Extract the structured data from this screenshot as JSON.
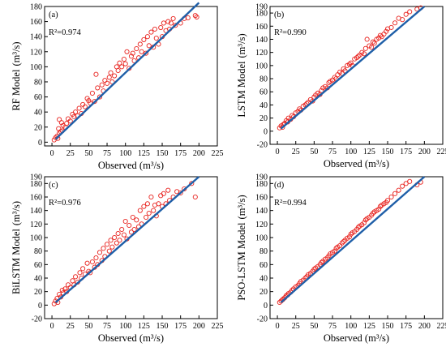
{
  "colors": {
    "points": "#e8231f",
    "fit_line": "#1f5fa8",
    "axes": "#000000",
    "background": "#ffffff"
  },
  "chart_data": [
    {
      "type": "scatter",
      "panel_label": "(a)",
      "r2_label": "R²=0.974",
      "xlabel": "Observed (m³/s)",
      "ylabel": "RF Model",
      "ylabel_unit": "(m³/s)",
      "xlim": [
        -10,
        225
      ],
      "ylim": [
        -5,
        180
      ],
      "xticks": [
        0,
        25,
        50,
        75,
        100,
        125,
        150,
        175,
        200,
        225
      ],
      "yticks": [
        0,
        20,
        40,
        60,
        80,
        100,
        120,
        140,
        160,
        180
      ],
      "fit_line": {
        "x": [
          5,
          200
        ],
        "y": [
          4,
          185
        ]
      },
      "points": [
        [
          3,
          3
        ],
        [
          5,
          6
        ],
        [
          7,
          8
        ],
        [
          8,
          5
        ],
        [
          10,
          12
        ],
        [
          9,
          18
        ],
        [
          12,
          14
        ],
        [
          14,
          15
        ],
        [
          15,
          22
        ],
        [
          10,
          30
        ],
        [
          13,
          26
        ],
        [
          18,
          20
        ],
        [
          20,
          25
        ],
        [
          22,
          31
        ],
        [
          25,
          28
        ],
        [
          28,
          37
        ],
        [
          30,
          34
        ],
        [
          32,
          40
        ],
        [
          35,
          35
        ],
        [
          37,
          45
        ],
        [
          40,
          38
        ],
        [
          42,
          50
        ],
        [
          45,
          47
        ],
        [
          48,
          58
        ],
        [
          50,
          55
        ],
        [
          52,
          52
        ],
        [
          55,
          65
        ],
        [
          58,
          54
        ],
        [
          60,
          90
        ],
        [
          62,
          72
        ],
        [
          65,
          60
        ],
        [
          68,
          76
        ],
        [
          70,
          68
        ],
        [
          72,
          82
        ],
        [
          75,
          78
        ],
        [
          78,
          86
        ],
        [
          80,
          92
        ],
        [
          82,
          80
        ],
        [
          85,
          88
        ],
        [
          88,
          100
        ],
        [
          90,
          95
        ],
        [
          92,
          105
        ],
        [
          95,
          100
        ],
        [
          98,
          110
        ],
        [
          100,
          104
        ],
        [
          102,
          120
        ],
        [
          105,
          98
        ],
        [
          108,
          114
        ],
        [
          110,
          118
        ],
        [
          112,
          108
        ],
        [
          115,
          124
        ],
        [
          118,
          112
        ],
        [
          120,
          130
        ],
        [
          122,
          120
        ],
        [
          125,
          136
        ],
        [
          128,
          118
        ],
        [
          130,
          140
        ],
        [
          132,
          128
        ],
        [
          135,
          146
        ],
        [
          138,
          126
        ],
        [
          140,
          150
        ],
        [
          142,
          138
        ],
        [
          145,
          130
        ],
        [
          148,
          152
        ],
        [
          150,
          140
        ],
        [
          152,
          158
        ],
        [
          155,
          148
        ],
        [
          158,
          160
        ],
        [
          160,
          150
        ],
        [
          162,
          158
        ],
        [
          165,
          164
        ],
        [
          168,
          155
        ],
        [
          175,
          158
        ],
        [
          180,
          164
        ],
        [
          185,
          165
        ],
        [
          195,
          168
        ],
        [
          197,
          166
        ]
      ]
    },
    {
      "type": "scatter",
      "panel_label": "(b)",
      "r2_label": "R²=0.990",
      "xlabel": "Observed (m³/s)",
      "ylabel": "LSTM Model",
      "ylabel_unit": "(m³/s)",
      "xlim": [
        -10,
        225
      ],
      "ylim": [
        -20,
        190
      ],
      "xticks": [
        0,
        25,
        50,
        75,
        100,
        125,
        150,
        175,
        200,
        225
      ],
      "yticks": [
        -20,
        0,
        20,
        40,
        60,
        80,
        100,
        120,
        140,
        160,
        180,
        190
      ],
      "fit_line": {
        "x": [
          5,
          200
        ],
        "y": [
          4,
          190
        ]
      },
      "points": [
        [
          3,
          5
        ],
        [
          5,
          8
        ],
        [
          7,
          6
        ],
        [
          8,
          10
        ],
        [
          10,
          12
        ],
        [
          12,
          16
        ],
        [
          14,
          14
        ],
        [
          15,
          20
        ],
        [
          18,
          18
        ],
        [
          20,
          24
        ],
        [
          22,
          22
        ],
        [
          25,
          28
        ],
        [
          28,
          30
        ],
        [
          30,
          34
        ],
        [
          32,
          32
        ],
        [
          35,
          38
        ],
        [
          38,
          40
        ],
        [
          40,
          42
        ],
        [
          42,
          44
        ],
        [
          45,
          48
        ],
        [
          48,
          46
        ],
        [
          50,
          52
        ],
        [
          52,
          55
        ],
        [
          55,
          58
        ],
        [
          58,
          56
        ],
        [
          60,
          62
        ],
        [
          62,
          66
        ],
        [
          65,
          68
        ],
        [
          68,
          66
        ],
        [
          70,
          74
        ],
        [
          72,
          76
        ],
        [
          75,
          78
        ],
        [
          78,
          82
        ],
        [
          80,
          80
        ],
        [
          82,
          86
        ],
        [
          85,
          90
        ],
        [
          88,
          88
        ],
        [
          90,
          95
        ],
        [
          92,
          92
        ],
        [
          95,
          100
        ],
        [
          98,
          102
        ],
        [
          100,
          104
        ],
        [
          102,
          100
        ],
        [
          105,
          110
        ],
        [
          108,
          112
        ],
        [
          110,
          114
        ],
        [
          112,
          116
        ],
        [
          115,
          120
        ],
        [
          118,
          118
        ],
        [
          120,
          126
        ],
        [
          122,
          140
        ],
        [
          125,
          130
        ],
        [
          128,
          128
        ],
        [
          130,
          136
        ],
        [
          132,
          134
        ],
        [
          135,
          140
        ],
        [
          138,
          142
        ],
        [
          140,
          146
        ],
        [
          142,
          144
        ],
        [
          145,
          148
        ],
        [
          148,
          152
        ],
        [
          150,
          156
        ],
        [
          155,
          158
        ],
        [
          160,
          165
        ],
        [
          165,
          172
        ],
        [
          170,
          170
        ],
        [
          175,
          178
        ],
        [
          180,
          182
        ],
        [
          190,
          186
        ],
        [
          195,
          188
        ]
      ]
    },
    {
      "type": "scatter",
      "panel_label": "(c)",
      "r2_label": "R²=0.976",
      "xlabel": "Observed (m³/s)",
      "ylabel": "BiLSTM Model",
      "ylabel_unit": "(m³/s)",
      "xlim": [
        -10,
        225
      ],
      "ylim": [
        -20,
        190
      ],
      "xticks": [
        0,
        25,
        50,
        75,
        100,
        125,
        150,
        175,
        200,
        225
      ],
      "yticks": [
        -20,
        0,
        20,
        40,
        60,
        80,
        100,
        120,
        140,
        160,
        180,
        190
      ],
      "fit_line": {
        "x": [
          5,
          200
        ],
        "y": [
          4,
          190
        ]
      },
      "points": [
        [
          3,
          2
        ],
        [
          5,
          6
        ],
        [
          7,
          10
        ],
        [
          8,
          4
        ],
        [
          10,
          16
        ],
        [
          12,
          12
        ],
        [
          14,
          22
        ],
        [
          15,
          18
        ],
        [
          18,
          24
        ],
        [
          20,
          20
        ],
        [
          22,
          30
        ],
        [
          25,
          26
        ],
        [
          28,
          36
        ],
        [
          30,
          30
        ],
        [
          32,
          42
        ],
        [
          35,
          34
        ],
        [
          38,
          48
        ],
        [
          40,
          40
        ],
        [
          42,
          54
        ],
        [
          45,
          46
        ],
        [
          48,
          62
        ],
        [
          50,
          50
        ],
        [
          52,
          48
        ],
        [
          55,
          64
        ],
        [
          58,
          56
        ],
        [
          60,
          70
        ],
        [
          62,
          60
        ],
        [
          65,
          78
        ],
        [
          68,
          66
        ],
        [
          70,
          84
        ],
        [
          72,
          72
        ],
        [
          75,
          90
        ],
        [
          78,
          80
        ],
        [
          80,
          96
        ],
        [
          82,
          86
        ],
        [
          85,
          100
        ],
        [
          88,
          92
        ],
        [
          90,
          106
        ],
        [
          92,
          96
        ],
        [
          95,
          112
        ],
        [
          98,
          104
        ],
        [
          100,
          124
        ],
        [
          102,
          98
        ],
        [
          105,
          118
        ],
        [
          108,
          108
        ],
        [
          110,
          130
        ],
        [
          112,
          112
        ],
        [
          115,
          126
        ],
        [
          118,
          116
        ],
        [
          120,
          140
        ],
        [
          122,
          120
        ],
        [
          125,
          146
        ],
        [
          128,
          130
        ],
        [
          130,
          150
        ],
        [
          132,
          136
        ],
        [
          135,
          160
        ],
        [
          138,
          140
        ],
        [
          140,
          148
        ],
        [
          142,
          132
        ],
        [
          145,
          150
        ],
        [
          148,
          162
        ],
        [
          150,
          146
        ],
        [
          152,
          165
        ],
        [
          155,
          150
        ],
        [
          158,
          170
        ],
        [
          160,
          155
        ],
        [
          165,
          160
        ],
        [
          170,
          168
        ],
        [
          175,
          166
        ],
        [
          180,
          172
        ],
        [
          190,
          180
        ],
        [
          195,
          160
        ]
      ]
    },
    {
      "type": "scatter",
      "panel_label": "(d)",
      "r2_label": "R²=0.994",
      "xlabel": "Observed (m³/s)",
      "ylabel": "PSO-LSTM Model",
      "ylabel_unit": "(m³/s)",
      "xlim": [
        -10,
        225
      ],
      "ylim": [
        -20,
        190
      ],
      "xticks": [
        0,
        25,
        50,
        75,
        100,
        125,
        150,
        175,
        200,
        225
      ],
      "yticks": [
        -20,
        0,
        20,
        40,
        60,
        80,
        100,
        120,
        140,
        160,
        180,
        190
      ],
      "fit_line": {
        "x": [
          5,
          200
        ],
        "y": [
          4,
          190
        ]
      },
      "points": [
        [
          3,
          4
        ],
        [
          5,
          6
        ],
        [
          7,
          8
        ],
        [
          8,
          9
        ],
        [
          10,
          11
        ],
        [
          12,
          14
        ],
        [
          14,
          15
        ],
        [
          15,
          17
        ],
        [
          18,
          19
        ],
        [
          20,
          22
        ],
        [
          22,
          24
        ],
        [
          25,
          27
        ],
        [
          28,
          29
        ],
        [
          30,
          32
        ],
        [
          32,
          35
        ],
        [
          35,
          37
        ],
        [
          38,
          40
        ],
        [
          40,
          42
        ],
        [
          42,
          45
        ],
        [
          45,
          47
        ],
        [
          48,
          50
        ],
        [
          50,
          53
        ],
        [
          52,
          55
        ],
        [
          55,
          57
        ],
        [
          58,
          60
        ],
        [
          60,
          63
        ],
        [
          62,
          65
        ],
        [
          65,
          68
        ],
        [
          68,
          70
        ],
        [
          70,
          73
        ],
        [
          72,
          76
        ],
        [
          75,
          78
        ],
        [
          78,
          80
        ],
        [
          80,
          84
        ],
        [
          82,
          86
        ],
        [
          85,
          88
        ],
        [
          88,
          92
        ],
        [
          90,
          94
        ],
        [
          92,
          96
        ],
        [
          95,
          99
        ],
        [
          98,
          101
        ],
        [
          100,
          105
        ],
        [
          102,
          107
        ],
        [
          105,
          109
        ],
        [
          108,
          112
        ],
        [
          110,
          115
        ],
        [
          112,
          117
        ],
        [
          115,
          119
        ],
        [
          118,
          122
        ],
        [
          120,
          126
        ],
        [
          122,
          128
        ],
        [
          125,
          130
        ],
        [
          128,
          133
        ],
        [
          130,
          136
        ],
        [
          132,
          138
        ],
        [
          135,
          140
        ],
        [
          138,
          142
        ],
        [
          140,
          146
        ],
        [
          142,
          148
        ],
        [
          145,
          150
        ],
        [
          148,
          152
        ],
        [
          150,
          155
        ],
        [
          155,
          160
        ],
        [
          160,
          165
        ],
        [
          165,
          170
        ],
        [
          170,
          176
        ],
        [
          175,
          180
        ],
        [
          180,
          183
        ],
        [
          190,
          178
        ],
        [
          195,
          182
        ]
      ]
    }
  ]
}
